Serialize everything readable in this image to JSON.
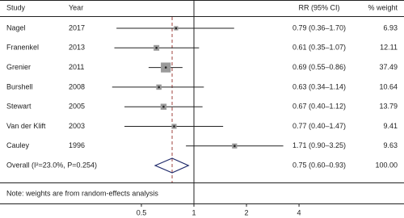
{
  "chart_data": {
    "type": "forest",
    "headers": {
      "study": "Study",
      "year": "Year",
      "estimate": "RR (95% CI)",
      "weight": "% weight"
    },
    "studies": [
      "Nagel",
      "Franenkel",
      "Grenier",
      "Burshell",
      "Stewart",
      "Van der Klift",
      "Cauley"
    ],
    "years": [
      2017,
      2013,
      2011,
      2008,
      2005,
      2003,
      1996
    ],
    "rr": {
      "values": [
        0.79,
        0.61,
        0.69,
        0.63,
        0.67,
        0.77,
        1.71
      ],
      "value_labels": [
        "0.79 (0.36–1.70)",
        "0.61 (0.35–1.07)",
        "0.69 (0.55–0.86)",
        "0.63 (0.34–1.14)",
        "0.67 (0.40–1.12)",
        "0.77 (0.40–1.47)",
        "1.71 (0.90–3.25)"
      ]
    },
    "lower": [
      0.36,
      0.35,
      0.55,
      0.34,
      0.4,
      0.4,
      0.9
    ],
    "upper": [
      1.7,
      1.07,
      0.86,
      1.14,
      1.12,
      1.47,
      3.25
    ],
    "weights": {
      "values": [
        6.93,
        12.11,
        37.49,
        10.64,
        13.79,
        9.41,
        9.63
      ],
      "value_labels": [
        "6.93",
        "12.11",
        "37.49",
        "10.64",
        "13.79",
        "9.41",
        "9.63"
      ]
    },
    "overall": {
      "label": "Overall (I²=23.0%, P=0.254)",
      "rr": 0.75,
      "lower": 0.6,
      "upper": 0.93,
      "value_label": "0.75 (0.60–0.93)",
      "weight": 100,
      "weight_label": "100.00"
    },
    "reference_line": 1,
    "note": "Note: weights are from random-effects analysis",
    "xscale": "log",
    "xlim": [
      0.33,
      5
    ],
    "xticks": [
      0.5,
      1,
      2,
      4
    ],
    "marker_color": "#9a9a9a",
    "diamond_color": "#1f2a6b"
  }
}
